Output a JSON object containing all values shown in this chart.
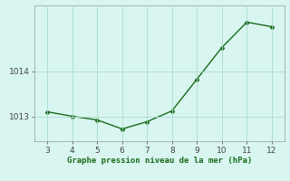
{
  "x": [
    3,
    4,
    5,
    6,
    7,
    8,
    9,
    10,
    11,
    12
  ],
  "y": [
    1013.1,
    1013.0,
    1012.92,
    1012.72,
    1012.88,
    1013.12,
    1013.82,
    1014.52,
    1015.08,
    1014.98
  ],
  "line_color": "#1a6b1a",
  "marker": "D",
  "marker_size": 2.5,
  "linewidth": 1.0,
  "xlim": [
    2.5,
    12.5
  ],
  "ylim": [
    1012.45,
    1015.45
  ],
  "xticks": [
    3,
    4,
    5,
    6,
    7,
    8,
    9,
    10,
    11,
    12
  ],
  "yticks": [
    1013,
    1014
  ],
  "background_color": "#d8f5f0",
  "grid_color": "#aaddcc",
  "xlabel": "Graphe pression niveau de la mer (hPa)",
  "xlabel_color": "#1a6b1a",
  "tick_color": "#444444",
  "tick_fontsize": 6.5,
  "xlabel_fontsize": 6.5
}
